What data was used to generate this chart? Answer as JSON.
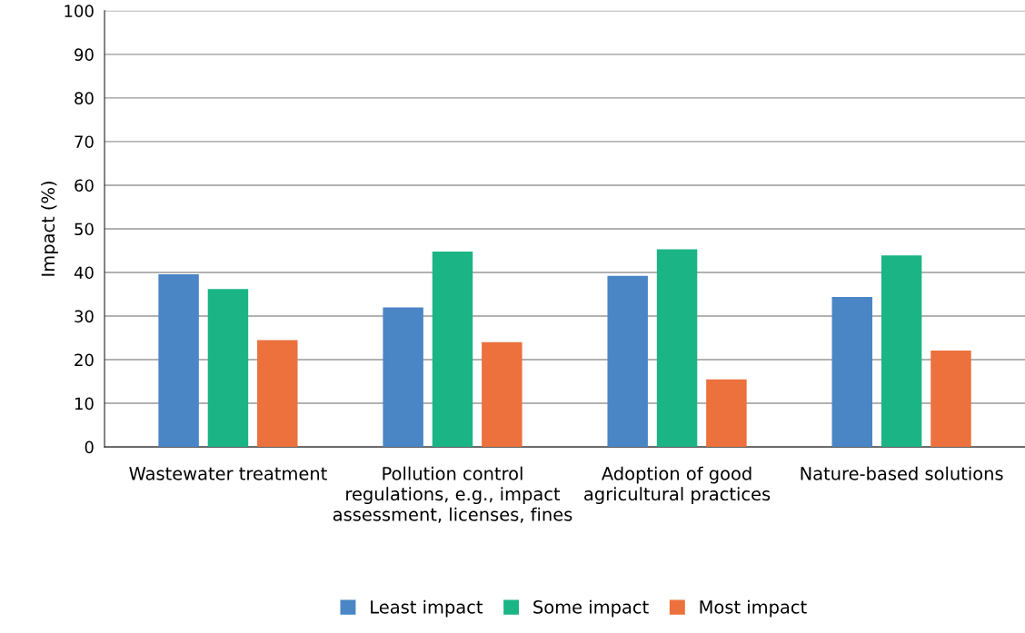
{
  "chart_data": {
    "type": "bar",
    "ylabel": "Impact (%)",
    "categories": [
      "Wastewater treatment",
      "Pollution control regulations, e.g., impact assessment, licenses, fines",
      "Adoption of good agricultural practices",
      "Nature-based solutions"
    ],
    "series": [
      {
        "name": "Least impact",
        "color": "#4a86c5",
        "values": [
          39.6,
          32.0,
          39.2,
          34.4
        ]
      },
      {
        "name": "Some impact",
        "color": "#1bb585",
        "values": [
          36.2,
          44.8,
          45.3,
          43.9
        ]
      },
      {
        "name": "Most impact",
        "color": "#ec713d",
        "values": [
          24.5,
          24.0,
          15.5,
          22.1
        ]
      }
    ],
    "ylim": [
      0,
      100
    ],
    "yticks": [
      0,
      10,
      20,
      30,
      40,
      50,
      60,
      70,
      80,
      90,
      100
    ],
    "grid": "y",
    "legend": "bottom"
  }
}
